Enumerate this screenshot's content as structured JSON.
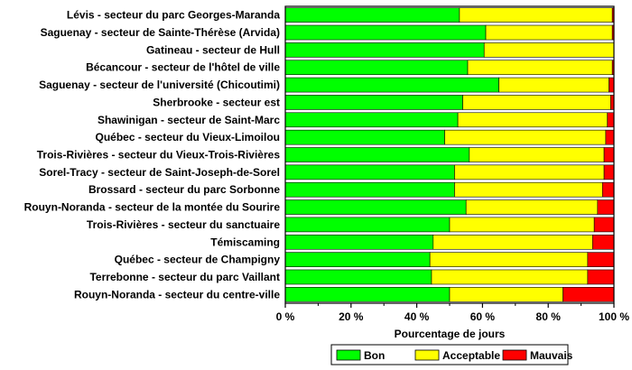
{
  "chart_data": {
    "type": "bar",
    "orientation": "horizontal",
    "stacked": true,
    "categories": [
      "Lévis - secteur du parc Georges-Maranda",
      "Saguenay - secteur de Sainte-Thérèse (Arvida)",
      "Gatineau - secteur de Hull",
      "Bécancour - secteur de l'hôtel de ville",
      "Saguenay - secteur de l'université (Chicoutimi)",
      "Sherbrooke - secteur est",
      "Shawinigan - secteur de Saint-Marc",
      "Québec - secteur du Vieux-Limoilou",
      "Trois-Rivières - secteur du Vieux-Trois-Rivières",
      "Sorel-Tracy - secteur de Saint-Joseph-de-Sorel",
      "Brossard - secteur du parc Sorbonne",
      "Rouyn-Noranda - secteur de la montée du Sourire",
      "Trois-Rivières - secteur du sanctuaire",
      "Témiscaming",
      "Québec - secteur de Champigny",
      "Terrebonne - secteur du parc Vaillant",
      "Rouyn-Noranda - secteur du centre-ville"
    ],
    "series": [
      {
        "name": "Bon",
        "color": "#00ff00",
        "values": [
          53,
          61,
          60.5,
          55.5,
          65,
          54,
          52.5,
          48.5,
          56,
          51.5,
          51.5,
          55,
          50,
          45,
          44,
          44.5,
          50
        ]
      },
      {
        "name": "Acceptable",
        "color": "#ffff00",
        "values": [
          46.5,
          38.5,
          39.5,
          44,
          33.5,
          45,
          45.5,
          49,
          41,
          45.5,
          45,
          40,
          44,
          48.5,
          48,
          47.5,
          34.5
        ]
      },
      {
        "name": "Mauvais",
        "color": "#ff0000",
        "values": [
          0.5,
          0.5,
          0,
          0.5,
          1.5,
          1,
          2,
          2.5,
          3,
          3,
          3.5,
          5,
          6,
          6.5,
          8,
          8,
          15.5
        ]
      }
    ],
    "x_ticks": [
      "0 %",
      "20 %",
      "40 %",
      "60 %",
      "80 %",
      "100 %"
    ],
    "xlim": [
      0,
      100
    ],
    "xlabel": "Pourcentage de jours",
    "legend_position": "bottom",
    "grid": false
  }
}
